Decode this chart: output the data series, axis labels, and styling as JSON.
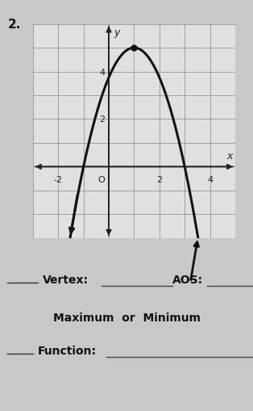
{
  "title_number": "2.",
  "background_color": "#e8e8e8",
  "page_background": "#d0d0d0",
  "grid_color": "#888888",
  "axis_color": "#222222",
  "parabola_color": "#111111",
  "vertex_x": 1,
  "vertex_y": 5,
  "parabola_a": -1.25,
  "x_min": -3,
  "x_max": 5,
  "y_min": -3,
  "y_max": 6,
  "x_ticks": [
    -2,
    0,
    2,
    4
  ],
  "y_ticks": [
    2,
    4
  ],
  "xlabel": "x",
  "ylabel": "y",
  "vertex_label_text": "Vertex:",
  "aos_label_text": "AOS:",
  "max_min_text": "Maximum  or  Minimum",
  "function_text": "Function:",
  "line_label_vertex": "___________",
  "line_label_aos": "________",
  "line_label_function": "_______________________________"
}
